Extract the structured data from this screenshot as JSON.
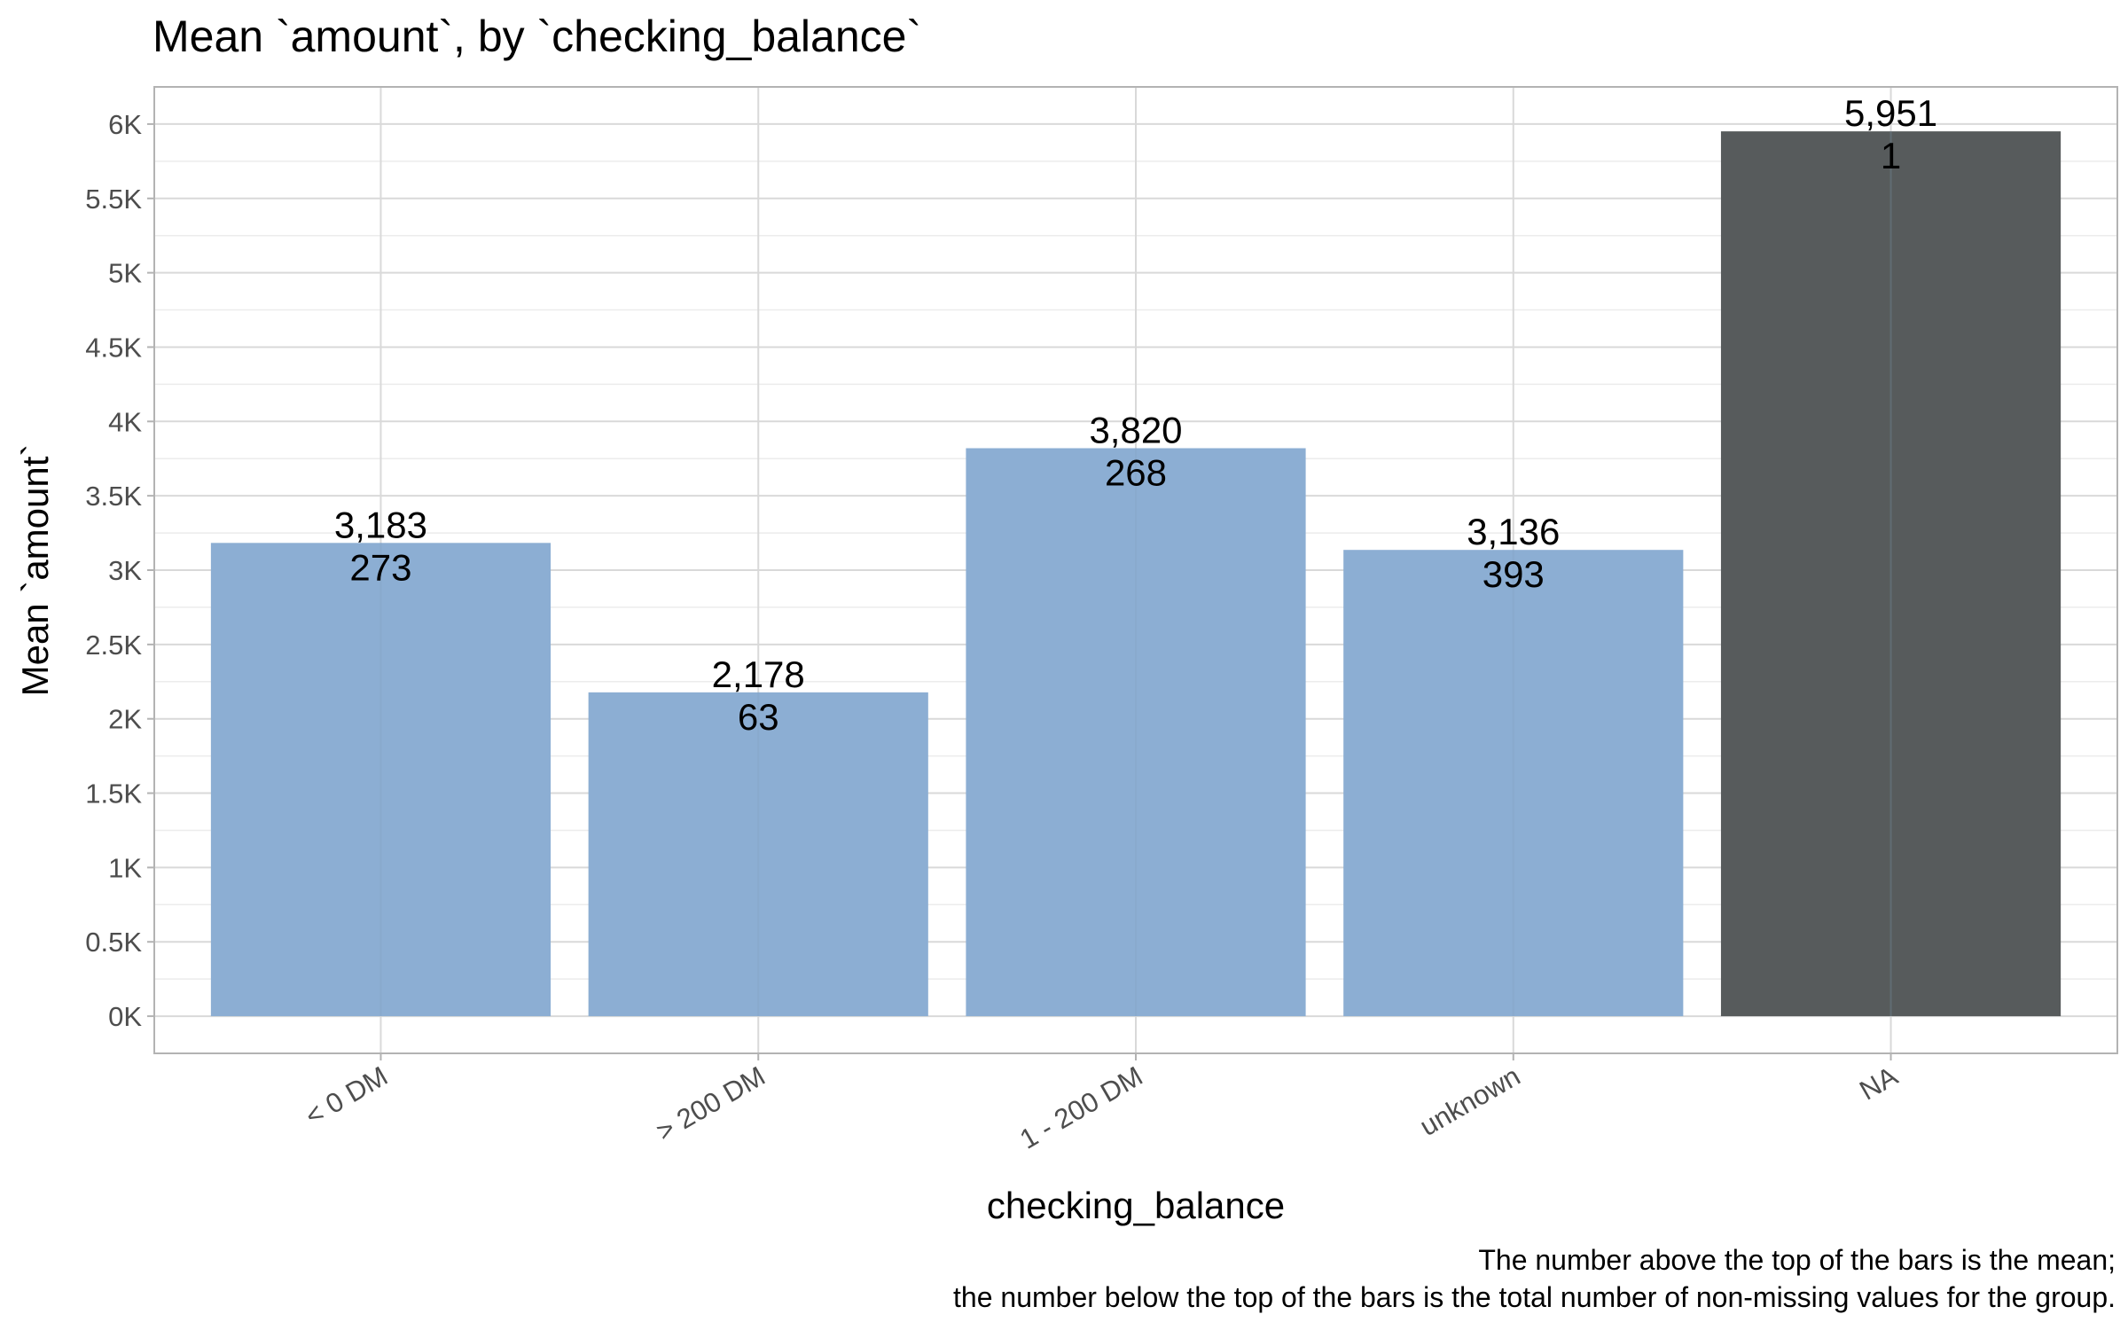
{
  "chart_data": {
    "type": "bar",
    "title": "Mean `amount`, by `checking_balance`",
    "xlabel": "checking_balance",
    "ylabel": "Mean `amount`",
    "categories": [
      "< 0 DM",
      "> 200 DM",
      "1 - 200 DM",
      "unknown",
      "NA"
    ],
    "values": [
      3183,
      2178,
      3820,
      3136,
      5951
    ],
    "value_labels": [
      "3,183",
      "2,178",
      "3,820",
      "3,136",
      "5,951"
    ],
    "counts": [
      273,
      63,
      268,
      393,
      1
    ],
    "bar_colors": [
      "#8caed3",
      "#8caed3",
      "#8caed3",
      "#8caed3",
      "#575b5c"
    ],
    "ylim": [
      -250,
      6250
    ],
    "y_ticks": [
      0,
      500,
      1000,
      1500,
      2000,
      2500,
      3000,
      3500,
      4000,
      4500,
      5000,
      5500,
      6000
    ],
    "y_tick_labels": [
      "0K",
      "0.5K",
      "1K",
      "1.5K",
      "2K",
      "2.5K",
      "3K",
      "3.5K",
      "4K",
      "4.5K",
      "5K",
      "5.5K",
      "6K"
    ],
    "grid": true,
    "caption_lines": [
      "The number above the top of the bars is the mean;",
      "the number below the top of the bars is the total number of non-missing values for the group."
    ]
  }
}
